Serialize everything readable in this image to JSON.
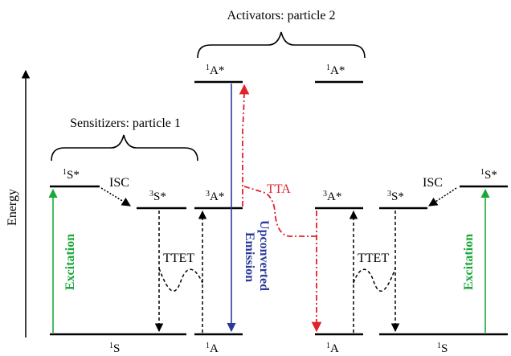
{
  "title_activators": "Activators: particle 2",
  "title_sensitizers": "Sensitizers: particle 1",
  "axis_label": "Energy",
  "states": {
    "s_ground": "S",
    "a_ground": "A",
    "s_singlet_excited": "S*",
    "s_triplet_excited": "S*",
    "a_triplet_excited": "A*",
    "a_singlet_excited": "A*",
    "sup_singlet": "1",
    "sup_triplet": "3"
  },
  "process_labels": {
    "isc": "ISC",
    "ttet": "TTET",
    "tta": "TTA",
    "excitation": "Excitation",
    "upconverted_line1": "Upconverted",
    "upconverted_line2": "Emission"
  },
  "colors": {
    "excitation": "#1aa83a",
    "emission": "#2b3a9a",
    "tta": "#e0222a",
    "levels": "#000000"
  }
}
